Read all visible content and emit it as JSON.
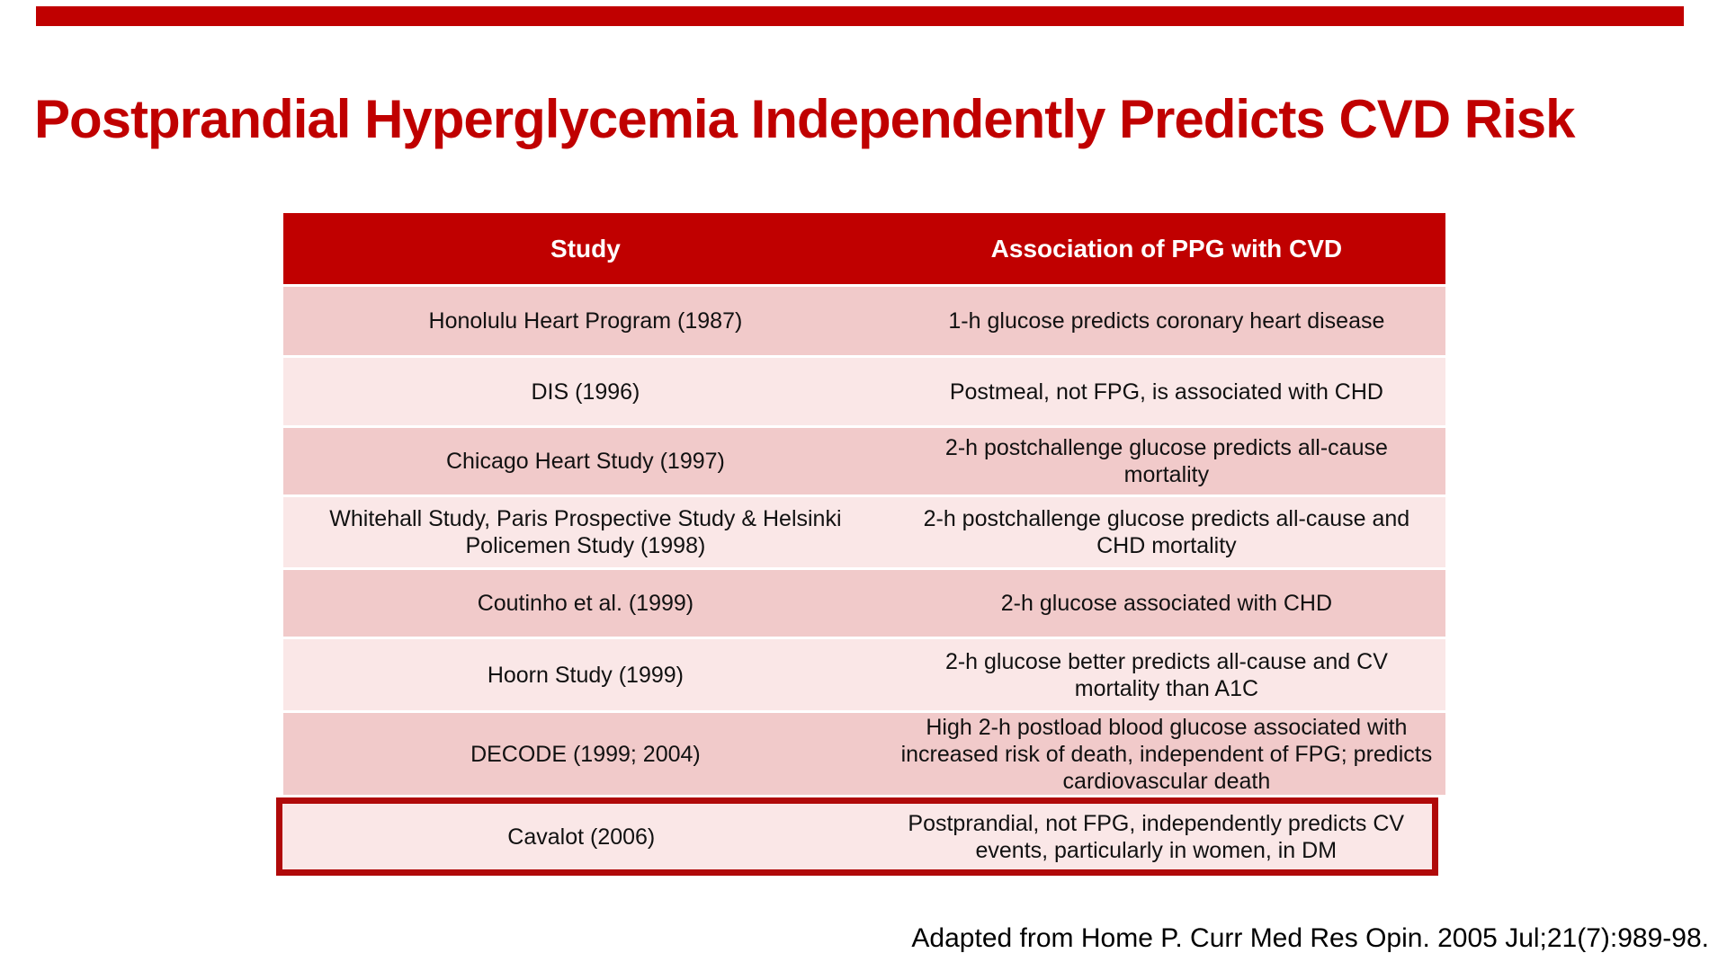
{
  "slide": {
    "title": "Postprandial Hyperglycemia Independently Predicts CVD Risk",
    "citation": "Adapted from Home P. Curr Med Res Opin. 2005 Jul;21(7):989-98.",
    "colors": {
      "top_bar": "#c00000",
      "title_red": "#c00000",
      "header_red": "#c00000",
      "row_dark_pink": "#f1caca",
      "row_light_pink": "#fae7e7",
      "highlight_border_red": "#b00909",
      "header_text": "#ffffff",
      "body_text": "#111111"
    },
    "table": {
      "columns": [
        "Study",
        "Association of PPG with CVD"
      ],
      "rows": [
        {
          "study": "Honolulu Heart Program (1987)",
          "association": "1-h glucose predicts coronary heart disease",
          "shade": "dark",
          "highlight": false
        },
        {
          "study": "DIS (1996)",
          "association": "Postmeal, not FPG, is associated with CHD",
          "shade": "light",
          "highlight": false
        },
        {
          "study": "Chicago Heart Study (1997)",
          "association": "2-h postchallenge glucose predicts all-cause\nmortality",
          "shade": "dark",
          "highlight": false
        },
        {
          "study": "Whitehall Study, Paris Prospective Study & Helsinki\nPolicemen Study (1998)",
          "association": "2-h postchallenge glucose predicts all-cause and\nCHD mortality",
          "shade": "light",
          "highlight": false
        },
        {
          "study": "Coutinho et al. (1999)",
          "association": "2-h glucose associated with CHD",
          "shade": "dark",
          "highlight": false
        },
        {
          "study": "Hoorn Study (1999)",
          "association": "2-h glucose better predicts all-cause and CV\nmortality than A1C",
          "shade": "light",
          "highlight": false
        },
        {
          "study": "DECODE (1999; 2004)",
          "association": "High 2-h postload blood glucose associated with\nincreased risk of death, independent of FPG; predicts\ncardiovascular death",
          "shade": "dark",
          "highlight": false
        },
        {
          "study": "Cavalot (2006)",
          "association": "Postprandial, not FPG, independently predicts CV\nevents, particularly in women, in DM",
          "shade": "light",
          "highlight": true
        }
      ]
    }
  }
}
